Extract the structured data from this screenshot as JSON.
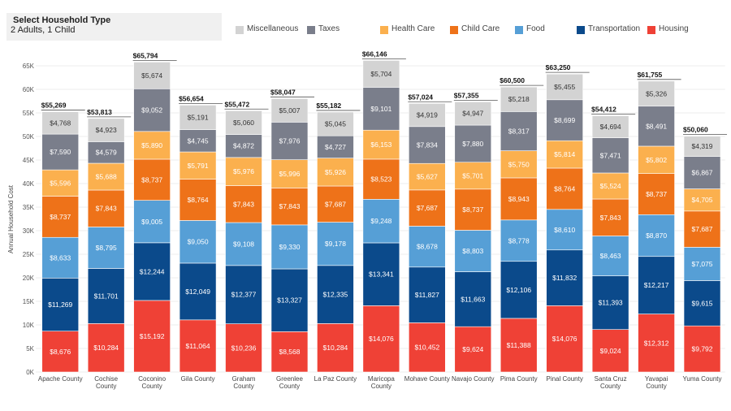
{
  "filter": {
    "title": "Select Household Type",
    "value": "2 Adults, 1 Child"
  },
  "colors": {
    "Housing": "#ef4136",
    "Transportation": "#0b4a8b",
    "Food": "#569fd6",
    "Child Care": "#ee7219",
    "Health Care": "#fbb04e",
    "Taxes": "#7a7e8b",
    "Miscellaneous": "#d3d3d3"
  },
  "legend_order": [
    "Miscellaneous",
    "Taxes",
    "Health Care",
    "Child Care",
    "Food",
    "Transportation",
    "Housing"
  ],
  "chart_data": {
    "type": "bar",
    "stacked": true,
    "title": "",
    "xlabel": "",
    "ylabel": "Annual Household Cost",
    "ylim": [
      0,
      65000
    ],
    "yticks": [
      0,
      5000,
      10000,
      15000,
      20000,
      25000,
      30000,
      35000,
      40000,
      45000,
      50000,
      55000,
      60000,
      65000
    ],
    "ytick_labels": [
      "0K",
      "5K",
      "10K",
      "15K",
      "20K",
      "25K",
      "30K",
      "35K",
      "40K",
      "45K",
      "50K",
      "55K",
      "60K",
      "65K"
    ],
    "categories": [
      "Apache County",
      "Cochise County",
      "Coconino County",
      "Gila County",
      "Graham County",
      "Greenlee County",
      "La Paz County",
      "Maricopa County",
      "Mohave County",
      "Navajo County",
      "Pima County",
      "Pinal County",
      "Santa Cruz County",
      "Yavapai County",
      "Yuma County"
    ],
    "category_lines": [
      [
        "Apache County"
      ],
      [
        "Cochise",
        "County"
      ],
      [
        "Coconino",
        "County"
      ],
      [
        "Gila County"
      ],
      [
        "Graham",
        "County"
      ],
      [
        "Greenlee",
        "County"
      ],
      [
        "La Paz County"
      ],
      [
        "Maricopa",
        "County"
      ],
      [
        "Mohave County"
      ],
      [
        "Navajo County"
      ],
      [
        "Pima County"
      ],
      [
        "Pinal County"
      ],
      [
        "Santa Cruz",
        "County"
      ],
      [
        "Yavapai",
        "County"
      ],
      [
        "Yuma County"
      ]
    ],
    "totals": [
      "$55,269",
      "$53,813",
      "$65,794",
      "$56,654",
      "$55,472",
      "$58,047",
      "$55,182",
      "$66,146",
      "$57,024",
      "$57,355",
      "$60,500",
      "$63,250",
      "$54,412",
      "$61,755",
      "$50,060"
    ],
    "series": [
      {
        "name": "Housing",
        "values": [
          8676,
          10284,
          15192,
          11064,
          10236,
          8568,
          10284,
          14076,
          10452,
          9624,
          11388,
          14076,
          9024,
          12312,
          9792
        ],
        "labels": [
          "$8,676",
          "$10,284",
          "$15,192",
          "$11,064",
          "$10,236",
          "$8,568",
          "$10,284",
          "$14,076",
          "$10,452",
          "$9,624",
          "$11,388",
          "$14,076",
          "$9,024",
          "$12,312",
          "$9,792"
        ]
      },
      {
        "name": "Transportation",
        "values": [
          11269,
          11701,
          12244,
          12049,
          12377,
          13327,
          12335,
          13341,
          11827,
          11663,
          12106,
          11832,
          11393,
          12217,
          9615
        ],
        "labels": [
          "$11,269",
          "$11,701",
          "$12,244",
          "$12,049",
          "$12,377",
          "$13,327",
          "$12,335",
          "$13,341",
          "$11,827",
          "$11,663",
          "$12,106",
          "$11,832",
          "$11,393",
          "$12,217",
          "$9,615"
        ]
      },
      {
        "name": "Food",
        "values": [
          8633,
          8795,
          9005,
          9050,
          9108,
          9330,
          9178,
          9248,
          8678,
          8803,
          8778,
          8610,
          8463,
          8870,
          7075
        ],
        "labels": [
          "$8,633",
          "$8,795",
          "$9,005",
          "$9,050",
          "$9,108",
          "$9,330",
          "$9,178",
          "$9,248",
          "$8,678",
          "$8,803",
          "$8,778",
          "$8,610",
          "$8,463",
          "$8,870",
          "$7,075"
        ]
      },
      {
        "name": "Child Care",
        "values": [
          8737,
          7843,
          8737,
          8764,
          7843,
          7843,
          7687,
          8523,
          7687,
          8737,
          8943,
          8764,
          7843,
          8737,
          7687
        ],
        "labels": [
          "$8,737",
          "$7,843",
          "$8,737",
          "$8,764",
          "$7,843",
          "$7,843",
          "$7,687",
          "$8,523",
          "$7,687",
          "$8,737",
          "$8,943",
          "$8,764",
          "$7,843",
          "$8,737",
          "$7,687"
        ]
      },
      {
        "name": "Health Care",
        "values": [
          5596,
          5688,
          5890,
          5791,
          5976,
          5996,
          5926,
          6153,
          5627,
          5701,
          5750,
          5814,
          5524,
          5802,
          4705
        ],
        "labels": [
          "$5,596",
          "$5,688",
          "$5,890",
          "$5,791",
          "$5,976",
          "$5,996",
          "$5,926",
          "$6,153",
          "$5,627",
          "$5,701",
          "$5,750",
          "$5,814",
          "$5,524",
          "$5,802",
          "$4,705"
        ]
      },
      {
        "name": "Taxes",
        "values": [
          7590,
          4579,
          9052,
          4745,
          4872,
          7976,
          4727,
          9101,
          7834,
          7880,
          8317,
          8699,
          7471,
          8491,
          6867
        ],
        "labels": [
          "$7,590",
          "$4,579",
          "$9,052",
          "$4,745",
          "$4,872",
          "$7,976",
          "$4,727",
          "$9,101",
          "$7,834",
          "$7,880",
          "$8,317",
          "$8,699",
          "$7,471",
          "$8,491",
          "$6,867"
        ]
      },
      {
        "name": "Miscellaneous",
        "values": [
          4768,
          4923,
          5674,
          5191,
          5060,
          5007,
          5045,
          5704,
          4919,
          4947,
          5218,
          5455,
          4694,
          5326,
          4319
        ],
        "labels": [
          "$4,768",
          "$4,923",
          "$5,674",
          "$5,191",
          "$5,060",
          "$5,007",
          "$5,045",
          "$5,704",
          "$4,919",
          "$4,947",
          "$5,218",
          "$5,455",
          "$4,694",
          "$5,326",
          "$4,319"
        ]
      }
    ]
  }
}
